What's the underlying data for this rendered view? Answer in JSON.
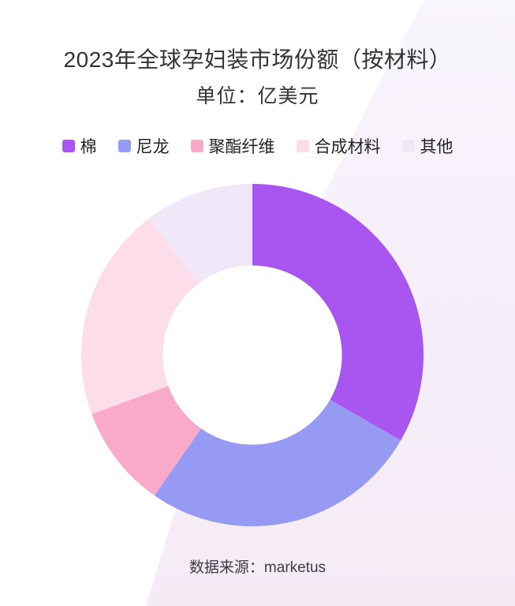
{
  "header": {
    "title": "2023年全球孕妇装市场份额（按材料）",
    "subtitle": "单位：亿美元"
  },
  "decor": {
    "band_gradient_top": "#f9f5fc",
    "band_gradient_mid": "#f5eefa",
    "band_gradient_bottom": "#f5ebf5"
  },
  "footer": {
    "source_text": "数据来源：marketus"
  },
  "chart_data": {
    "type": "pie",
    "donut": true,
    "title": "2023年全球孕妇装市场份额（按材料）",
    "subtitle": "单位：亿美元",
    "unit": "亿美元",
    "source": "marketus",
    "legend_position": "top",
    "values_labeled": false,
    "start_angle_deg": 0,
    "direction": "clockwise",
    "inner_radius_ratio": 0.523,
    "hole_color": "#ffffff",
    "segments": [
      {
        "id": "cotton",
        "label": "棉",
        "share_percent": 33.3,
        "color": "#a956f0"
      },
      {
        "id": "nylon",
        "label": "尼龙",
        "share_percent": 26.4,
        "color": "#979af2"
      },
      {
        "id": "polyester-fiber",
        "label": "聚酯纤维",
        "share_percent": 9.7,
        "color": "#f9aac9"
      },
      {
        "id": "synthetic-materials",
        "label": "合成材料",
        "share_percent": 20.3,
        "color": "#fcdde9"
      },
      {
        "id": "other",
        "label": "其他",
        "share_percent": 10.3,
        "color": "#f0e8f9"
      }
    ]
  }
}
